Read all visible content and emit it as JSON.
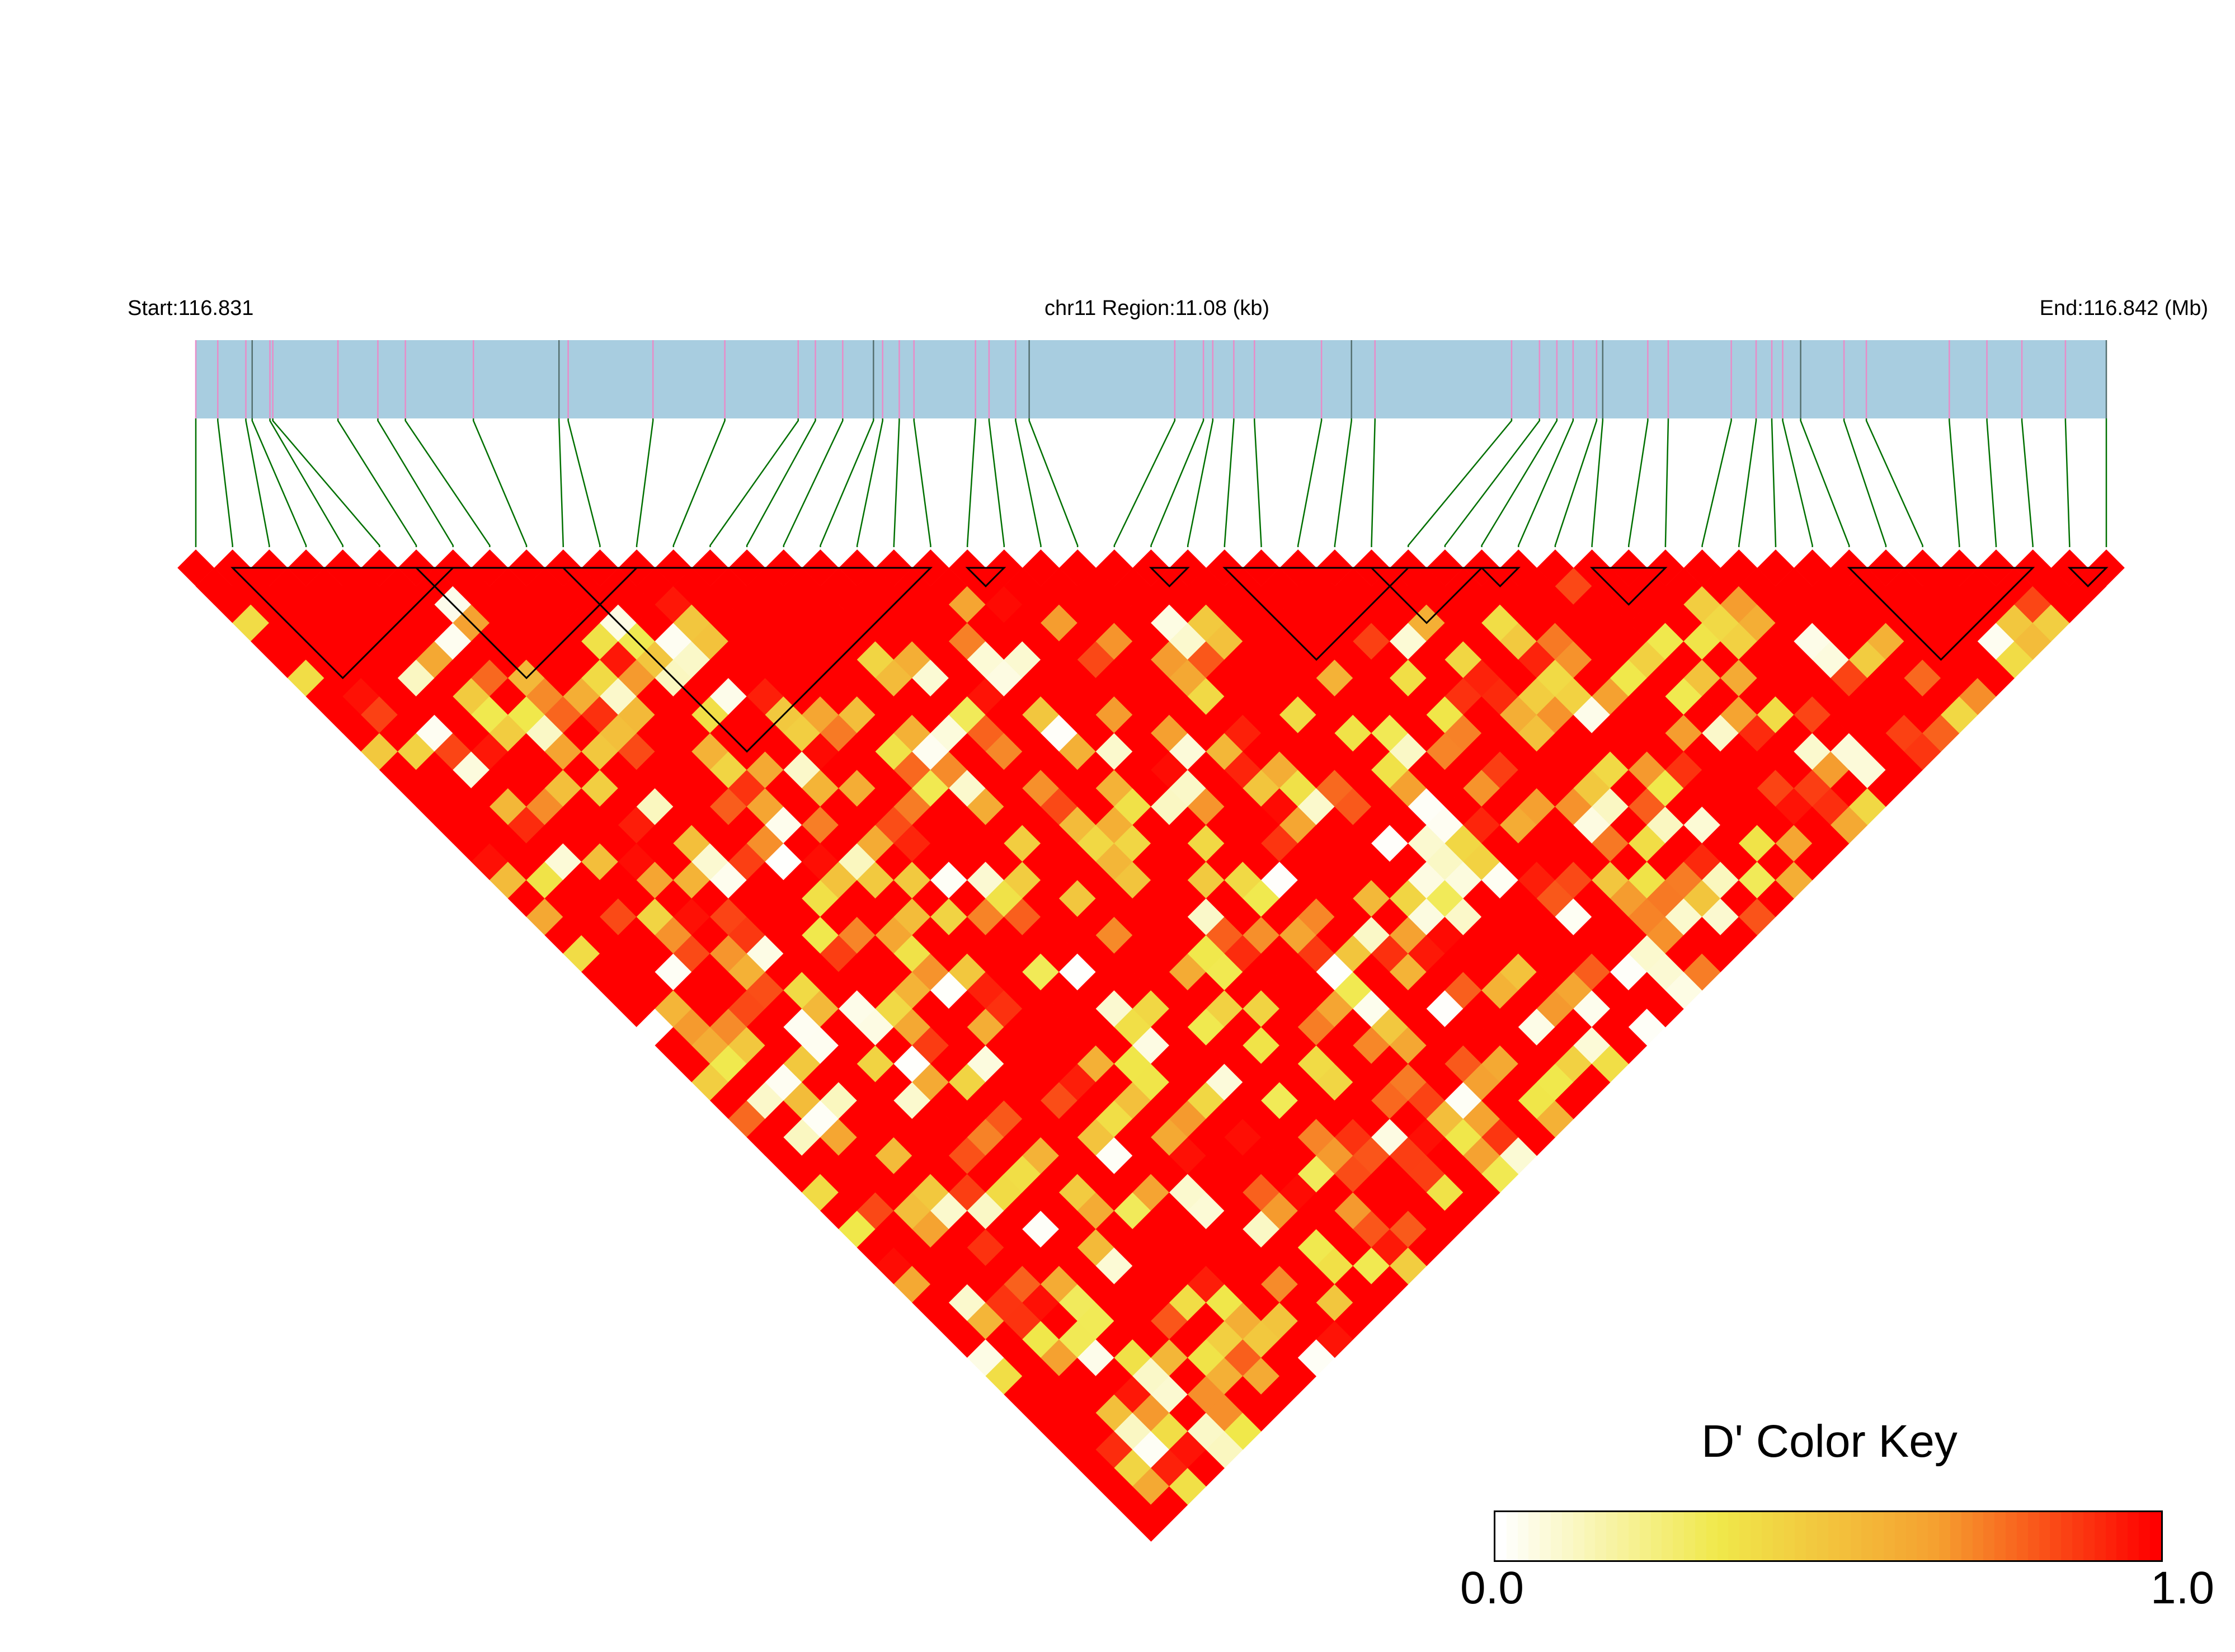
{
  "chart_data": {
    "type": "heatmap",
    "title": "",
    "subtitle": "",
    "region": {
      "start_label": "Start:116.831",
      "region_label": "chr11 Region:11.08 (kb)",
      "end_label": "End:116.842 (Mb)",
      "start_mb": 116.831,
      "end_mb": 116.842,
      "length_kb": 11.08
    },
    "n_snps": 53,
    "snp_positions_fraction": [
      0.0,
      0.0115,
      0.0262,
      0.0295,
      0.0388,
      0.0403,
      0.0744,
      0.0953,
      0.1097,
      0.1453,
      0.1901,
      0.1949,
      0.2393,
      0.2769,
      0.3153,
      0.3243,
      0.3386,
      0.3547,
      0.3595,
      0.3682,
      0.3759,
      0.4081,
      0.4152,
      0.4291,
      0.4362,
      0.5124,
      0.5274,
      0.5323,
      0.5433,
      0.5541,
      0.5892,
      0.6049,
      0.6172,
      0.6887,
      0.7033,
      0.7124,
      0.7209,
      0.7332,
      0.7364,
      0.76,
      0.7707,
      0.8037,
      0.8167,
      0.8249,
      0.8306,
      0.84,
      0.8627,
      0.8744,
      0.9178,
      0.9375,
      0.9558,
      0.9786,
      1.0
    ],
    "ld_blocks": [
      [
        1,
        7
      ],
      [
        6,
        12
      ],
      [
        10,
        20
      ],
      [
        21,
        22
      ],
      [
        26,
        27
      ],
      [
        28,
        33
      ],
      [
        32,
        35
      ],
      [
        35,
        36
      ],
      [
        38,
        40
      ],
      [
        45,
        50
      ],
      [
        51,
        52
      ]
    ],
    "d_prime_matrix_seed": 20417,
    "color_scale": {
      "title": "D' Color Key",
      "min": 0.0,
      "max": 1.0,
      "min_label": "0.0",
      "max_label": "1.0",
      "stops": [
        "#ffffff",
        "#f0e84a",
        "#f5a030",
        "#ff0000"
      ]
    },
    "colors": {
      "gene_track": "#a8cde0",
      "snp_tick": "#e88cc8",
      "marker_line": "#007000",
      "block_outline": "#000000",
      "high_ld": "#ff0000"
    }
  }
}
